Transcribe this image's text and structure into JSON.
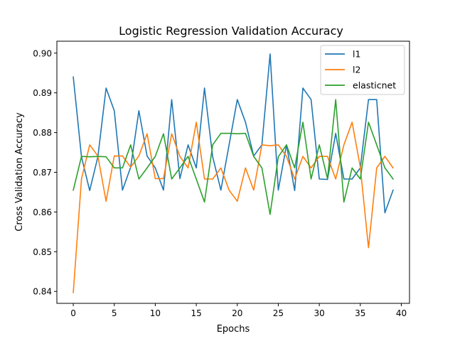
{
  "chart_data": {
    "type": "line",
    "title": "Logistic Regression Validation Accuracy",
    "xlabel": "Epochs",
    "ylabel": "Cross Validation Accuracy",
    "xlim": [
      -2,
      41
    ],
    "ylim": [
      0.837,
      0.903
    ],
    "xticks": [
      0,
      5,
      10,
      15,
      20,
      25,
      30,
      35,
      40
    ],
    "xtick_labels": [
      "0",
      "5",
      "10",
      "15",
      "20",
      "25",
      "30",
      "35",
      "40"
    ],
    "yticks": [
      0.84,
      0.85,
      0.86,
      0.87,
      0.88,
      0.89,
      0.9
    ],
    "ytick_labels": [
      "0.84",
      "0.85",
      "0.86",
      "0.87",
      "0.88",
      "0.89",
      "0.90"
    ],
    "grid": false,
    "legend_position": "top-right",
    "x": [
      0,
      1,
      2,
      3,
      4,
      5,
      6,
      7,
      8,
      9,
      10,
      11,
      12,
      13,
      14,
      15,
      16,
      17,
      18,
      19,
      20,
      21,
      22,
      23,
      24,
      25,
      26,
      27,
      28,
      29,
      30,
      31,
      32,
      33,
      34,
      35,
      36,
      37,
      38,
      39
    ],
    "series": [
      {
        "name": "l1",
        "color": "#1f77b4",
        "values": [
          0.894,
          0.8739,
          0.8654,
          0.8739,
          0.8912,
          0.8855,
          0.8655,
          0.8713,
          0.8855,
          0.8741,
          0.8711,
          0.8655,
          0.8883,
          0.8684,
          0.8769,
          0.8711,
          0.8912,
          0.8739,
          0.8655,
          0.8769,
          0.8883,
          0.8826,
          0.8741,
          0.8769,
          0.8998,
          0.8655,
          0.8769,
          0.8654,
          0.8912,
          0.8883,
          0.8683,
          0.8682,
          0.8798,
          0.8683,
          0.8683,
          0.8711,
          0.8883,
          0.8883,
          0.8598,
          0.8655
        ]
      },
      {
        "name": "l2",
        "color": "#ff7f0e",
        "values": [
          0.8397,
          0.8683,
          0.8769,
          0.8741,
          0.8627,
          0.8741,
          0.8741,
          0.8713,
          0.8741,
          0.8797,
          0.8684,
          0.8684,
          0.8797,
          0.874,
          0.8711,
          0.8826,
          0.8683,
          0.8683,
          0.8711,
          0.8655,
          0.8627,
          0.8711,
          0.8655,
          0.8769,
          0.8767,
          0.8769,
          0.874,
          0.8683,
          0.874,
          0.8711,
          0.874,
          0.874,
          0.8683,
          0.8769,
          0.8826,
          0.8713,
          0.851,
          0.8711,
          0.874,
          0.8711
        ]
      },
      {
        "name": "elasticnet",
        "color": "#2ca02c",
        "values": [
          0.8655,
          0.874,
          0.8739,
          0.874,
          0.8739,
          0.8711,
          0.8711,
          0.8769,
          0.8683,
          0.8711,
          0.874,
          0.8797,
          0.8683,
          0.8711,
          0.874,
          0.8683,
          0.8625,
          0.8769,
          0.8798,
          0.8798,
          0.8797,
          0.8798,
          0.874,
          0.8711,
          0.8594,
          0.8739,
          0.8769,
          0.8711,
          0.8826,
          0.8683,
          0.8769,
          0.8684,
          0.8883,
          0.8625,
          0.8711,
          0.8683,
          0.8826,
          0.8769,
          0.8711,
          0.8683
        ]
      }
    ]
  }
}
